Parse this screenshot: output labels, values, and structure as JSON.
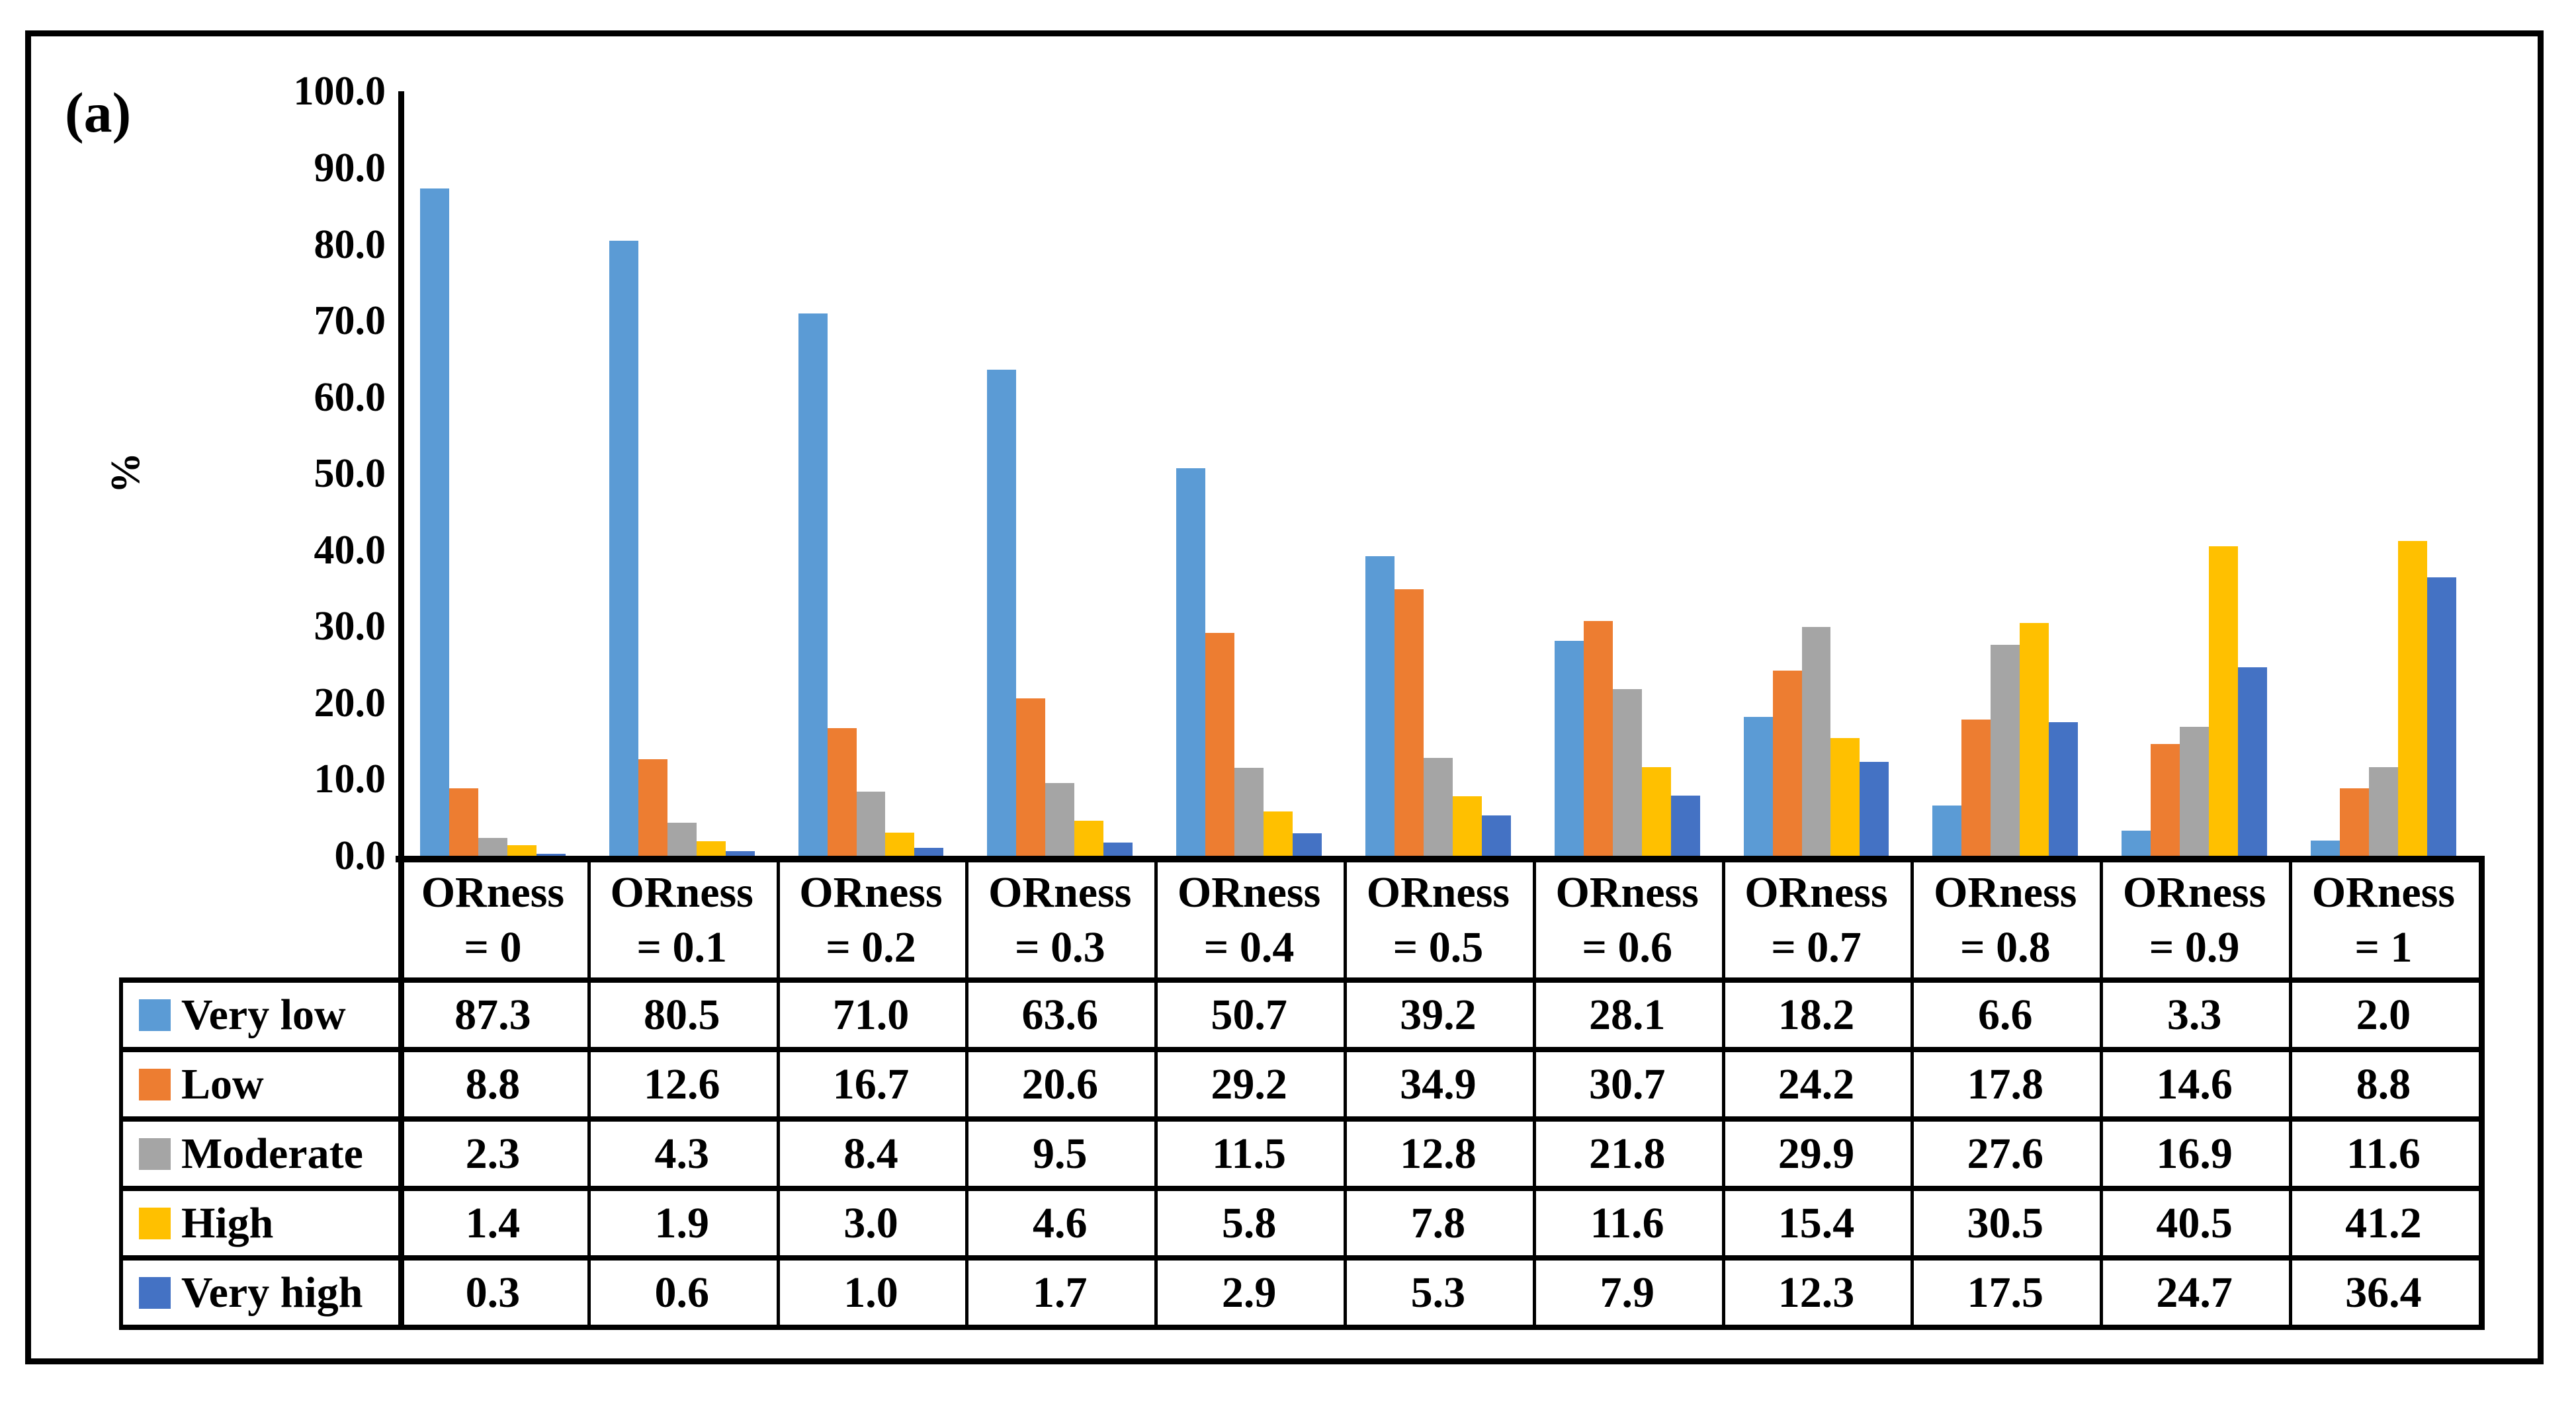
{
  "figure": {
    "panel_label": "(a)"
  },
  "chart_data": {
    "type": "bar",
    "title": "",
    "xlabel": "",
    "ylabel": "%",
    "ylim": [
      0,
      100
    ],
    "ytick_step": 10,
    "ytick_decimals": 1,
    "grid": false,
    "legend_position": "data-table-left",
    "data_table_shown": true,
    "categories": [
      "ORness = 0",
      "ORness = 0.1",
      "ORness = 0.2",
      "ORness = 0.3",
      "ORness = 0.4",
      "ORness = 0.5",
      "ORness = 0.6",
      "ORness = 0.7",
      "ORness = 0.8",
      "ORness = 0.9",
      "ORness = 1"
    ],
    "category_label_line1": "ORness",
    "series": [
      {
        "name": "Very low",
        "color": "#5B9BD5",
        "values": [
          87.3,
          80.5,
          71.0,
          63.6,
          50.7,
          39.2,
          28.1,
          18.2,
          6.6,
          3.3,
          2.0
        ]
      },
      {
        "name": "Low",
        "color": "#ED7D31",
        "values": [
          8.8,
          12.6,
          16.7,
          20.6,
          29.2,
          34.9,
          30.7,
          24.2,
          17.8,
          14.6,
          8.8
        ]
      },
      {
        "name": "Moderate",
        "color": "#A5A5A5",
        "values": [
          2.3,
          4.3,
          8.4,
          9.5,
          11.5,
          12.8,
          21.8,
          29.9,
          27.6,
          16.9,
          11.6
        ]
      },
      {
        "name": "High",
        "color": "#FFC000",
        "values": [
          1.4,
          1.9,
          3.0,
          4.6,
          5.8,
          7.8,
          11.6,
          15.4,
          30.5,
          40.5,
          41.2
        ]
      },
      {
        "name": "Very high",
        "color": "#4472C4",
        "values": [
          0.3,
          0.6,
          1.0,
          1.7,
          2.9,
          5.3,
          7.9,
          12.3,
          17.5,
          24.7,
          36.4
        ]
      }
    ],
    "colors": {
      "axis": "#000000",
      "background": "#ffffff"
    }
  }
}
